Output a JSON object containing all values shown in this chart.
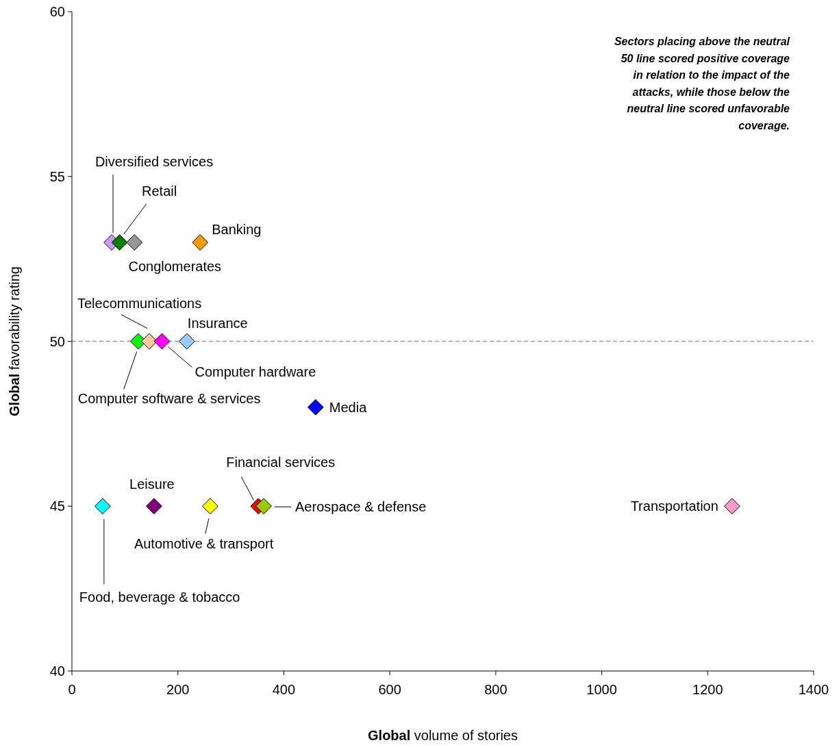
{
  "chart_data": {
    "type": "scatter",
    "xlabel": "Global volume of stories",
    "ylabel": "Global favorability rating",
    "xlim": [
      0,
      1400
    ],
    "xticks": [
      0,
      200,
      400,
      600,
      800,
      1000,
      1200,
      1400
    ],
    "ylim": [
      40,
      60
    ],
    "yticks": [
      40,
      45,
      50,
      55,
      60
    ],
    "marker": "diamond",
    "grid": false,
    "ref_lines": [
      {
        "axis": "y",
        "value": 50,
        "color": "#999999",
        "line_style": "dashed"
      }
    ],
    "annotations": [
      "Sectors placing above the neutral\n50 line scored positive coverage\nin relation to the impact of the\nattacks, while those below the\nneutral line scored unfavorable\ncoverage."
    ],
    "series": [
      {
        "name": "Diversified services",
        "color": "#cc99ff",
        "x": [
          75
        ],
        "values": [
          53
        ]
      },
      {
        "name": "Retail",
        "color": "#008000",
        "x": [
          90
        ],
        "values": [
          53
        ]
      },
      {
        "name": "Conglomerates",
        "color": "#969696",
        "x": [
          118
        ],
        "values": [
          53
        ]
      },
      {
        "name": "Banking",
        "color": "#ff9900",
        "x": [
          242
        ],
        "values": [
          53
        ]
      },
      {
        "name": "Computer software & services",
        "color": "#00ff00",
        "x": [
          125
        ],
        "values": [
          50
        ]
      },
      {
        "name": "Telecommunications",
        "color": "#ffcc99",
        "x": [
          146
        ],
        "values": [
          50
        ]
      },
      {
        "name": "Computer hardware",
        "color": "#ff00ff",
        "x": [
          170
        ],
        "values": [
          50
        ]
      },
      {
        "name": "Insurance",
        "color": "#99ccff",
        "x": [
          217
        ],
        "values": [
          50
        ]
      },
      {
        "name": "Media",
        "color": "#0000ff",
        "x": [
          460
        ],
        "values": [
          48
        ]
      },
      {
        "name": "Food, beverage & tobacco",
        "color": "#00ffff",
        "x": [
          58
        ],
        "values": [
          45
        ]
      },
      {
        "name": "Leisure",
        "color": "#800080",
        "x": [
          155
        ],
        "values": [
          45
        ]
      },
      {
        "name": "Automotive & transport",
        "color": "#ffff00",
        "x": [
          261
        ],
        "values": [
          45
        ]
      },
      {
        "name": "Financial services",
        "color": "#ff0000",
        "x": [
          352
        ],
        "values": [
          45
        ]
      },
      {
        "name": "Aerospace & defense",
        "color": "#99cc00",
        "x": [
          362
        ],
        "values": [
          45
        ]
      },
      {
        "name": "Transportation",
        "color": "#ff99cc",
        "x": [
          1246
        ],
        "values": [
          45
        ]
      }
    ]
  }
}
